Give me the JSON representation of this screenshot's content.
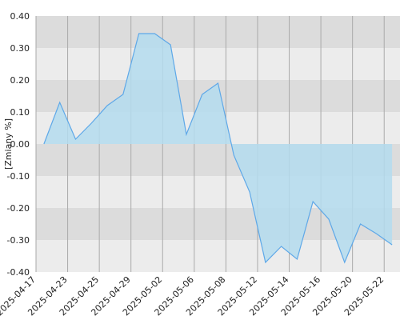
{
  "chart_data": {
    "type": "area",
    "y_label": "[Zmiany %]",
    "categories": [
      "2025-04-17",
      null,
      "2025-04-23",
      null,
      "2025-04-25",
      null,
      "2025-04-29",
      null,
      "2025-05-02",
      null,
      "2025-05-06",
      null,
      "2025-05-08",
      null,
      "2025-05-12",
      null,
      "2025-05-14",
      null,
      "2025-05-16",
      null,
      "2025-05-20",
      null,
      "2025-05-22"
    ],
    "values": [
      0.0,
      0.13,
      0.015,
      0.065,
      0.12,
      0.155,
      0.345,
      0.345,
      0.31,
      0.03,
      0.155,
      0.19,
      -0.035,
      -0.15,
      -0.37,
      -0.32,
      -0.36,
      -0.18,
      -0.235,
      -0.37,
      -0.25,
      -0.28,
      -0.315
    ],
    "color": "#5ea8e8",
    "fill_color": "#b4dcee",
    "ylim": [
      -0.4,
      0.4
    ],
    "yticks": [
      {
        "value": -0.4,
        "label": "-0.40"
      },
      {
        "value": -0.3,
        "label": "-0.30"
      },
      {
        "value": -0.2,
        "label": "-0.20"
      },
      {
        "value": -0.1,
        "label": "-0.10"
      },
      {
        "value": 0,
        "label": "0.00"
      },
      {
        "value": 0.1,
        "label": "0.10"
      },
      {
        "value": 0.2,
        "label": "0.20"
      },
      {
        "value": 0.3,
        "label": "0.30"
      },
      {
        "value": 0.4,
        "label": "0.40"
      }
    ],
    "grid": true
  }
}
